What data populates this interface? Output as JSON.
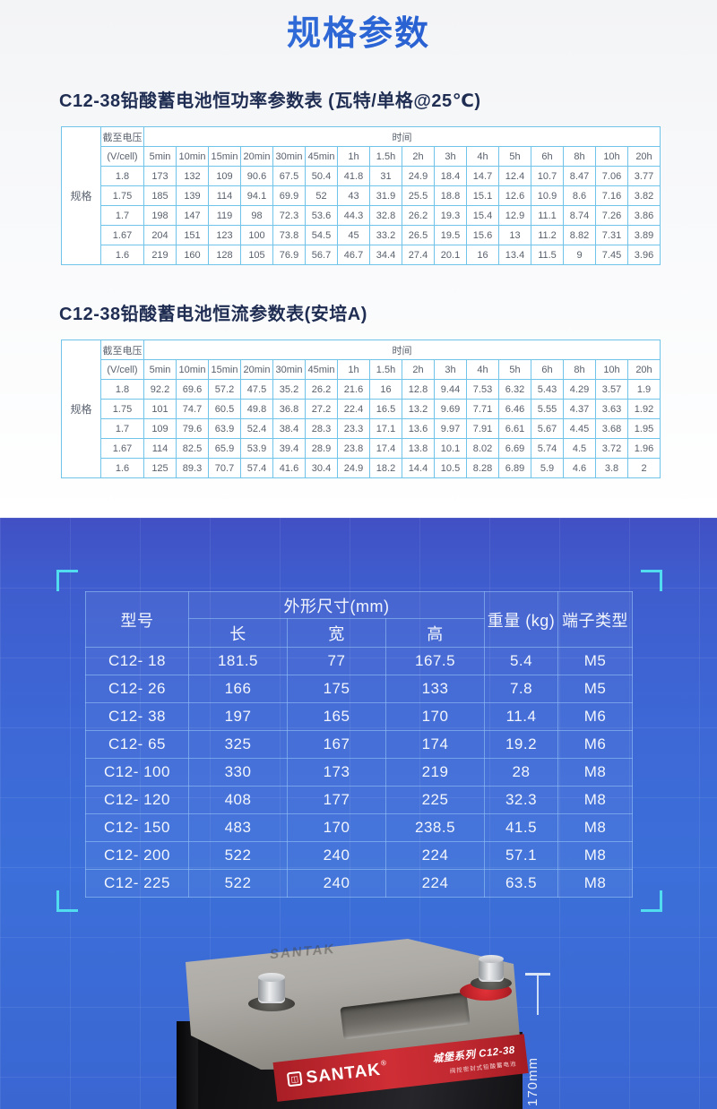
{
  "page": {
    "title": "规格参数"
  },
  "colors": {
    "accent_blue": "#2a63d3",
    "spec_table_border": "#70c4e9",
    "spec_text_gray": "#59616d",
    "blue_section_bg": "#3c6fd9",
    "bracket_cyan": "#52dcf0",
    "label_red": "#c3272e"
  },
  "power_table": {
    "heading": "C12-38铅酸蓄电池恒功率参数表 (瓦特/单格@25℃)",
    "spec_label": "规格",
    "cutoff_label": "截至电压",
    "cutoff_unit": "(V/cell)",
    "time_label": "时间",
    "time_columns": [
      "5min",
      "10min",
      "15min",
      "20min",
      "30min",
      "45min",
      "1h",
      "1.5h",
      "2h",
      "3h",
      "4h",
      "5h",
      "6h",
      "8h",
      "10h",
      "20h"
    ],
    "rows": [
      [
        "1.8",
        "173",
        "132",
        "109",
        "90.6",
        "67.5",
        "50.4",
        "41.8",
        "31",
        "24.9",
        "18.4",
        "14.7",
        "12.4",
        "10.7",
        "8.47",
        "7.06",
        "3.77"
      ],
      [
        "1.75",
        "185",
        "139",
        "114",
        "94.1",
        "69.9",
        "52",
        "43",
        "31.9",
        "25.5",
        "18.8",
        "15.1",
        "12.6",
        "10.9",
        "8.6",
        "7.16",
        "3.82"
      ],
      [
        "1.7",
        "198",
        "147",
        "119",
        "98",
        "72.3",
        "53.6",
        "44.3",
        "32.8",
        "26.2",
        "19.3",
        "15.4",
        "12.9",
        "11.1",
        "8.74",
        "7.26",
        "3.86"
      ],
      [
        "1.67",
        "204",
        "151",
        "123",
        "100",
        "73.8",
        "54.5",
        "45",
        "33.2",
        "26.5",
        "19.5",
        "15.6",
        "13",
        "11.2",
        "8.82",
        "7.31",
        "3.89"
      ],
      [
        "1.6",
        "219",
        "160",
        "128",
        "105",
        "76.9",
        "56.7",
        "46.7",
        "34.4",
        "27.4",
        "20.1",
        "16",
        "13.4",
        "11.5",
        "9",
        "7.45",
        "3.96"
      ]
    ]
  },
  "current_table": {
    "heading": "C12-38铅酸蓄电池恒流参数表(安培A)",
    "spec_label": "规格",
    "cutoff_label": "截至电压",
    "cutoff_unit": "(V/cell)",
    "time_label": "时间",
    "time_columns": [
      "5min",
      "10min",
      "15min",
      "20min",
      "30min",
      "45min",
      "1h",
      "1.5h",
      "2h",
      "3h",
      "4h",
      "5h",
      "6h",
      "8h",
      "10h",
      "20h"
    ],
    "rows": [
      [
        "1.8",
        "92.2",
        "69.6",
        "57.2",
        "47.5",
        "35.2",
        "26.2",
        "21.6",
        "16",
        "12.8",
        "9.44",
        "7.53",
        "6.32",
        "5.43",
        "4.29",
        "3.57",
        "1.9"
      ],
      [
        "1.75",
        "101",
        "74.7",
        "60.5",
        "49.8",
        "36.8",
        "27.2",
        "22.4",
        "16.5",
        "13.2",
        "9.69",
        "7.71",
        "6.46",
        "5.55",
        "4.37",
        "3.63",
        "1.92"
      ],
      [
        "1.7",
        "109",
        "79.6",
        "63.9",
        "52.4",
        "38.4",
        "28.3",
        "23.3",
        "17.1",
        "13.6",
        "9.97",
        "7.91",
        "6.61",
        "5.67",
        "4.45",
        "3.68",
        "1.95"
      ],
      [
        "1.67",
        "114",
        "82.5",
        "65.9",
        "53.9",
        "39.4",
        "28.9",
        "23.8",
        "17.4",
        "13.8",
        "10.1",
        "8.02",
        "6.69",
        "5.74",
        "4.5",
        "3.72",
        "1.96"
      ],
      [
        "1.6",
        "125",
        "89.3",
        "70.7",
        "57.4",
        "41.6",
        "30.4",
        "24.9",
        "18.2",
        "14.4",
        "10.5",
        "8.28",
        "6.89",
        "5.9",
        "4.6",
        "3.8",
        "2"
      ]
    ]
  },
  "dimension_table": {
    "model_label": "型号",
    "size_label": "外形尺寸(mm)",
    "size_columns": [
      "长",
      "宽",
      "高"
    ],
    "weight_label": "重量 (kg)",
    "terminal_label": "端子类型",
    "rows": [
      [
        "C12- 18",
        "181.5",
        "77",
        "167.5",
        "5.4",
        "M5"
      ],
      [
        "C12- 26",
        "166",
        "175",
        "133",
        "7.8",
        "M5"
      ],
      [
        "C12- 38",
        "197",
        "165",
        "170",
        "11.4",
        "M6"
      ],
      [
        "C12- 65",
        "325",
        "167",
        "174",
        "19.2",
        "M6"
      ],
      [
        "C12- 100",
        "330",
        "173",
        "219",
        "28",
        "M8"
      ],
      [
        "C12- 120",
        "408",
        "177",
        "225",
        "32.3",
        "M8"
      ],
      [
        "C12- 150",
        "483",
        "170",
        "238.5",
        "41.5",
        "M8"
      ],
      [
        "C12- 200",
        "522",
        "240",
        "224",
        "57.1",
        "M8"
      ],
      [
        "C12- 225",
        "522",
        "240",
        "224",
        "63.5",
        "M8"
      ]
    ]
  },
  "battery": {
    "embossed": "SANTAK",
    "brand": "SANTAK",
    "reg_mark": "®",
    "logo_glyph": "◫",
    "series_label": "城堡系列 C12-38",
    "series_sub": "阀控密封式铅酸蓄电池",
    "height_marker": "170mm"
  }
}
